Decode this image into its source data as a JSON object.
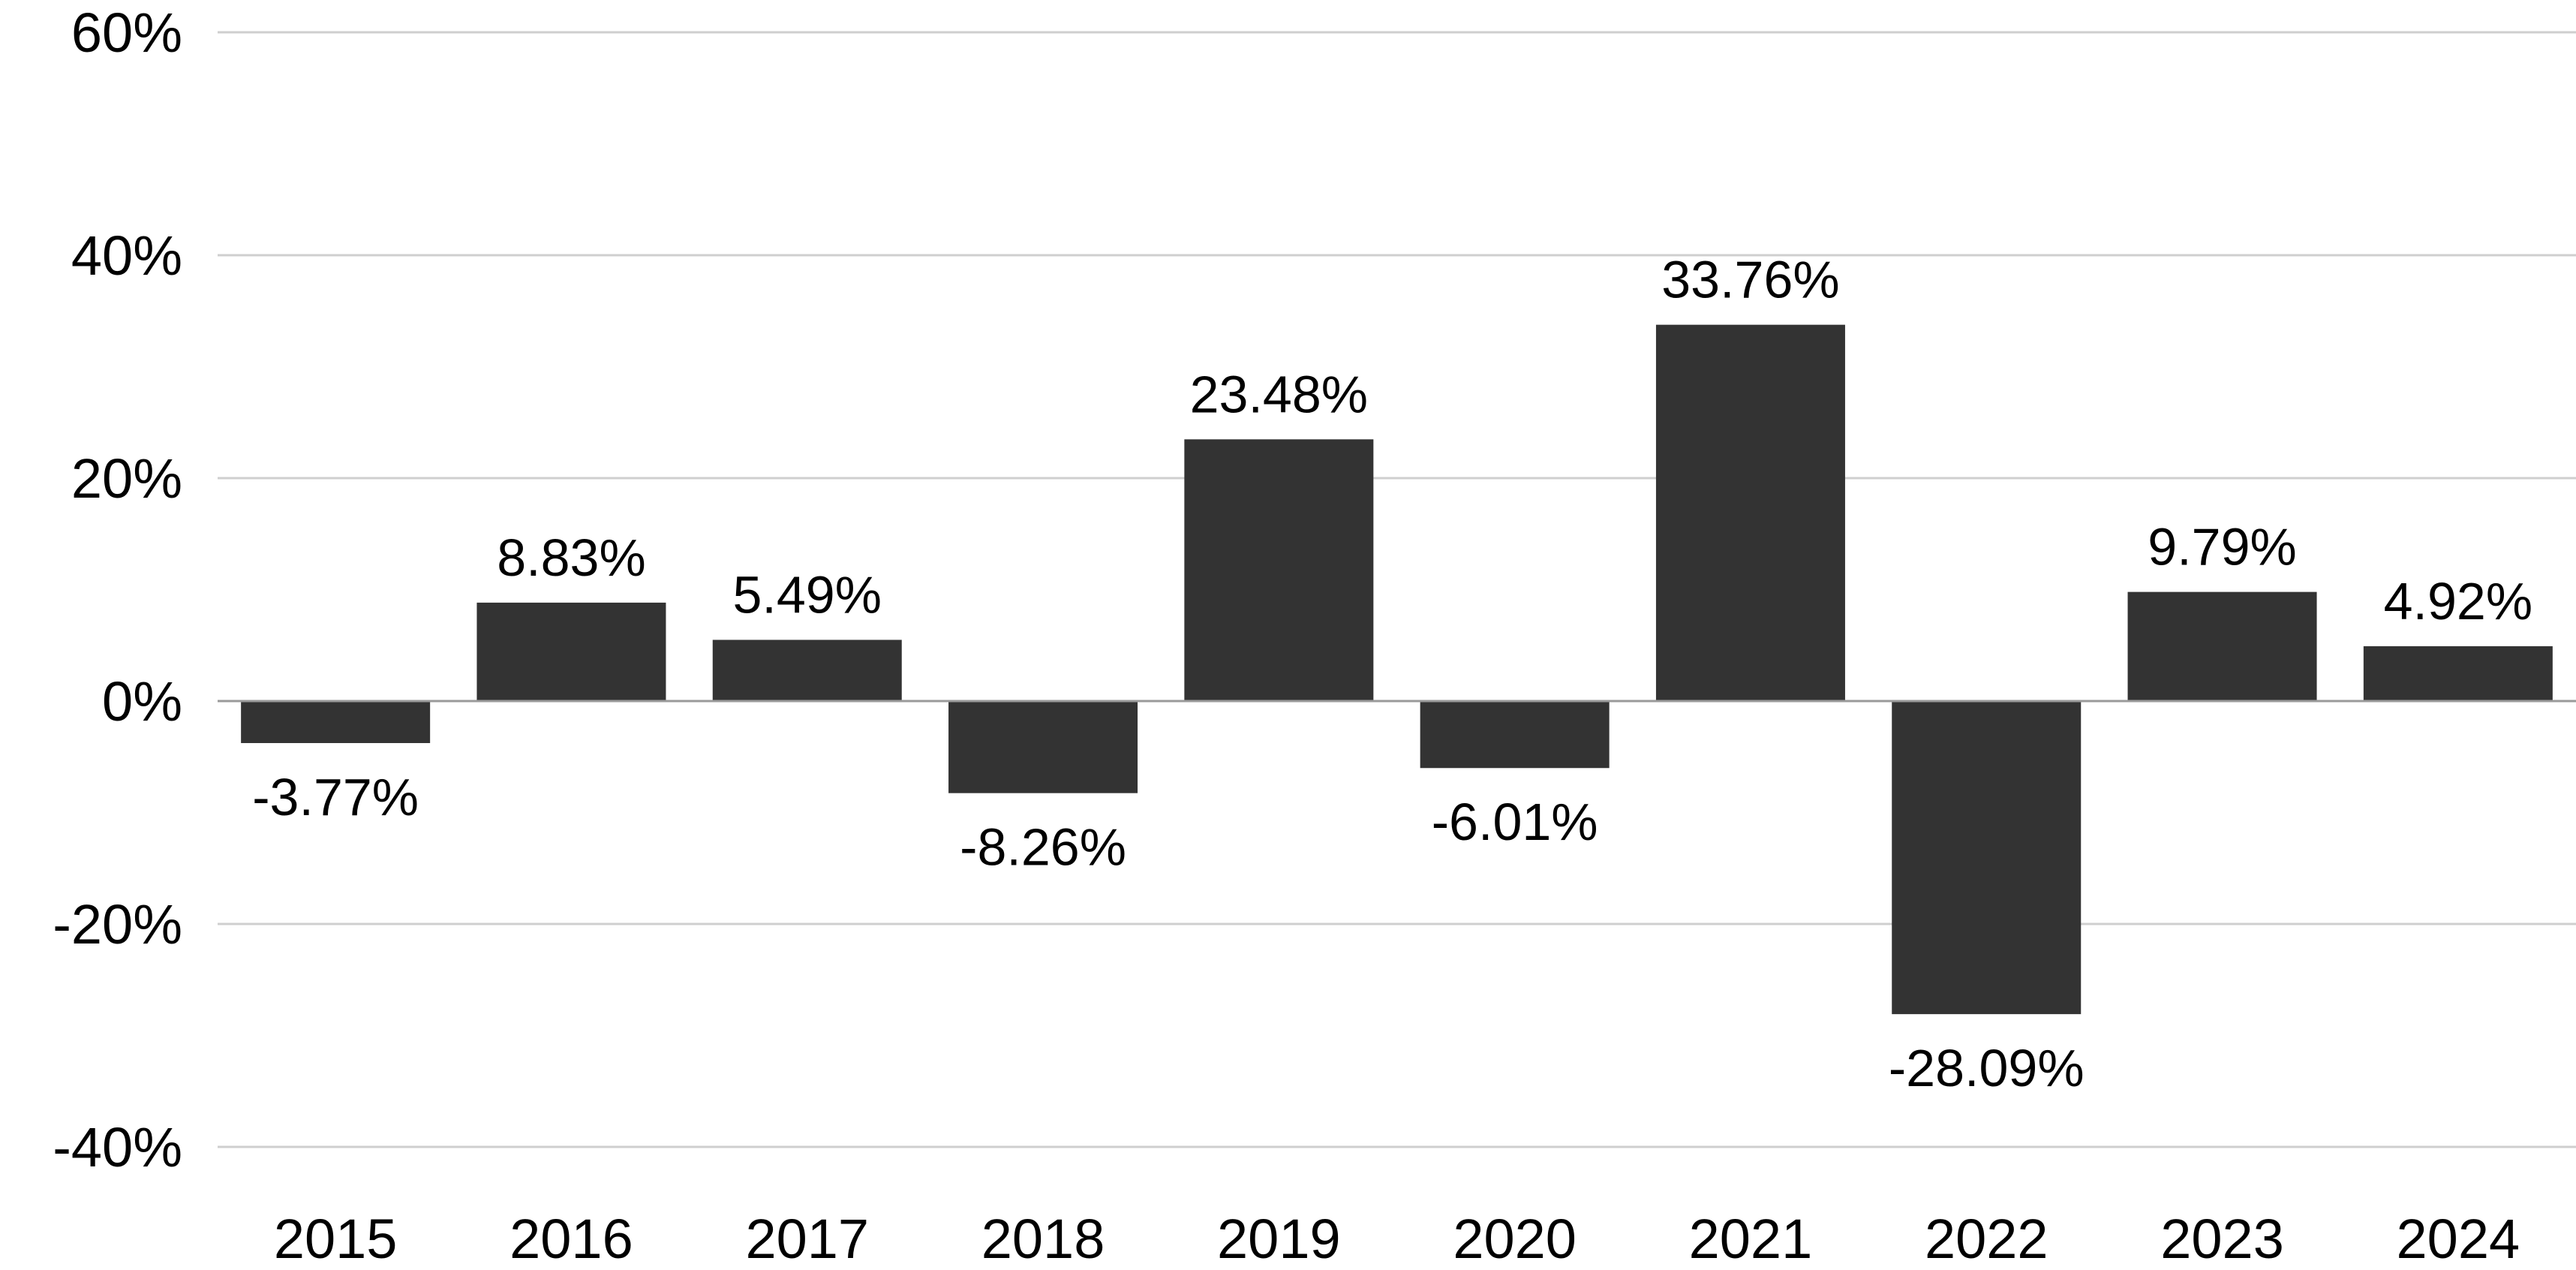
{
  "chart_data": {
    "type": "bar",
    "title": "",
    "xlabel": "",
    "ylabel": "",
    "categories": [
      "2015",
      "2016",
      "2017",
      "2018",
      "2019",
      "2020",
      "2021",
      "2022",
      "2023",
      "2024"
    ],
    "values": [
      -3.77,
      8.83,
      5.49,
      -8.26,
      23.48,
      -6.01,
      33.76,
      -28.09,
      9.79,
      4.92
    ],
    "data_labels": [
      "-3.77%",
      "8.83%",
      "5.49%",
      "-8.26%",
      "23.48%",
      "-6.01%",
      "33.76%",
      "-28.09%",
      "9.79%",
      "4.92%"
    ],
    "ylim": [
      -40,
      60
    ],
    "yticks": [
      -40,
      -20,
      0,
      20,
      40,
      60
    ],
    "ytick_labels": [
      "-40%",
      "-20%",
      "0%",
      "20%",
      "40%",
      "60%"
    ],
    "grid": true,
    "legend": "none",
    "bar_color": "#333333",
    "grid_color": "#cfcfcf",
    "zero_line_color": "#9a9a9a"
  }
}
